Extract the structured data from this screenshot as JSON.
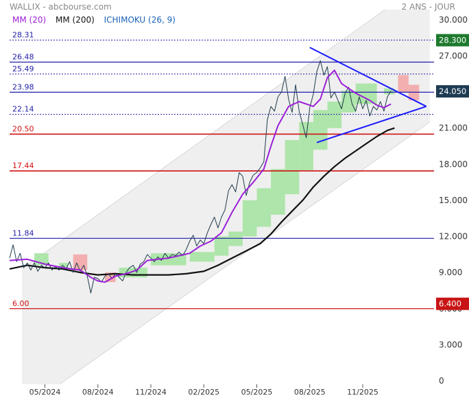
{
  "header": {
    "title": "WALLIX - abcbourse.com",
    "period": "2 ANS - JOUR"
  },
  "legend": [
    {
      "label": "MM (20)",
      "color": "#9b1fd8"
    },
    {
      "label": "MM (200)",
      "color": "#111111"
    },
    {
      "label": "ICHIMOKU (26, 9)",
      "color": "#1a62b8"
    }
  ],
  "chart_data": {
    "type": "line",
    "title": "WALLIX - abcbourse.com",
    "x_ticks": [
      "05/2024",
      "08/2024",
      "11/2024",
      "02/2025",
      "05/2025",
      "08/2025",
      "11/2025"
    ],
    "y_ticks": [
      "0",
      "3.000",
      "6.000",
      "9.000",
      "12.000",
      "15.000",
      "18.000",
      "21.000",
      "24.000",
      "27.000",
      "30.000"
    ],
    "ylim": [
      0,
      30.5
    ],
    "xlim": [
      0,
      24
    ],
    "x_tick_positions": [
      2,
      5,
      8,
      11,
      14,
      17,
      20
    ],
    "horizontal_levels": [
      {
        "label": "28.31",
        "value": 28.31,
        "color": "#1f1fa8",
        "style": "dotted"
      },
      {
        "label": "26.48",
        "value": 26.48,
        "color": "#1f1fa8",
        "style": "solid"
      },
      {
        "label": "25.49",
        "value": 25.49,
        "color": "#1f1fa8",
        "style": "dotted"
      },
      {
        "label": "23.98",
        "value": 23.98,
        "color": "#1f1fa8",
        "style": "solid"
      },
      {
        "label": "22.14",
        "value": 22.14,
        "color": "#1f1fa8",
        "style": "dotted"
      },
      {
        "label": "20.50",
        "value": 20.5,
        "color": "#d01010",
        "style": "solid"
      },
      {
        "label": "17.44",
        "value": 17.44,
        "color": "#d01010",
        "style": "solid"
      },
      {
        "label": "11.84",
        "value": 11.84,
        "color": "#1f1fa8",
        "style": "solid"
      },
      {
        "label": "6.00",
        "value": 6.0,
        "color": "#d01010",
        "style": "solid"
      }
    ],
    "price_badges": [
      {
        "label": "28.300",
        "value": 28.3,
        "color": "#1e7a2e"
      },
      {
        "label": "24.050",
        "value": 24.05,
        "color": "#1d3b52"
      },
      {
        "label": "6.400",
        "value": 6.4,
        "color": "#c81414"
      }
    ],
    "channel": {
      "upper": [
        [
          0.7,
          9.3
        ],
        [
          23.8,
          33.5
        ]
      ],
      "lower": [
        [
          0.7,
          -2.5
        ],
        [
          23.8,
          21.5
        ]
      ]
    },
    "triangle": {
      "top": [
        [
          17.0,
          27.7
        ],
        [
          23.6,
          22.8
        ]
      ],
      "bottom": [
        [
          17.4,
          19.8
        ],
        [
          23.6,
          22.8
        ]
      ]
    },
    "series": [
      {
        "name": "Cours",
        "color": "#1e3a4c",
        "points": [
          [
            0,
            10.2
          ],
          [
            0.2,
            11.3
          ],
          [
            0.4,
            9.9
          ],
          [
            0.6,
            10.6
          ],
          [
            0.8,
            9.4
          ],
          [
            1.0,
            9.8
          ],
          [
            1.2,
            9.2
          ],
          [
            1.4,
            9.8
          ],
          [
            1.6,
            9.1
          ],
          [
            1.8,
            9.6
          ],
          [
            2.0,
            9.4
          ],
          [
            2.2,
            9.8
          ],
          [
            2.4,
            9.2
          ],
          [
            2.6,
            9.5
          ],
          [
            2.8,
            9.2
          ],
          [
            3.0,
            9.6
          ],
          [
            3.2,
            9.3
          ],
          [
            3.4,
            9.9
          ],
          [
            3.6,
            9.0
          ],
          [
            3.8,
            9.8
          ],
          [
            4.0,
            9.1
          ],
          [
            4.2,
            9.6
          ],
          [
            4.4,
            8.7
          ],
          [
            4.6,
            7.3
          ],
          [
            4.8,
            8.6
          ],
          [
            5.0,
            8.5
          ],
          [
            5.2,
            8.2
          ],
          [
            5.4,
            8.7
          ],
          [
            5.6,
            8.9
          ],
          [
            5.8,
            8.5
          ],
          [
            6.0,
            8.9
          ],
          [
            6.2,
            8.6
          ],
          [
            6.4,
            8.3
          ],
          [
            6.6,
            9.0
          ],
          [
            6.8,
            9.4
          ],
          [
            7.0,
            9.6
          ],
          [
            7.2,
            9.0
          ],
          [
            7.4,
            9.7
          ],
          [
            7.6,
            9.9
          ],
          [
            7.8,
            10.5
          ],
          [
            8.0,
            10.2
          ],
          [
            8.2,
            9.9
          ],
          [
            8.4,
            10.3
          ],
          [
            8.6,
            10.0
          ],
          [
            8.8,
            10.6
          ],
          [
            9.0,
            10.2
          ],
          [
            9.2,
            10.5
          ],
          [
            9.4,
            10.4
          ],
          [
            9.6,
            10.7
          ],
          [
            9.8,
            10.4
          ],
          [
            10.0,
            10.9
          ],
          [
            10.2,
            11.6
          ],
          [
            10.4,
            12.1
          ],
          [
            10.6,
            11.2
          ],
          [
            10.8,
            11.7
          ],
          [
            11.0,
            11.4
          ],
          [
            11.2,
            12.3
          ],
          [
            11.4,
            13.0
          ],
          [
            11.6,
            13.6
          ],
          [
            11.8,
            12.7
          ],
          [
            12.0,
            13.6
          ],
          [
            12.2,
            14.2
          ],
          [
            12.4,
            15.8
          ],
          [
            12.6,
            16.3
          ],
          [
            12.8,
            15.7
          ],
          [
            13.0,
            17.3
          ],
          [
            13.2,
            17.0
          ],
          [
            13.4,
            15.4
          ],
          [
            13.6,
            16.5
          ],
          [
            13.8,
            17.1
          ],
          [
            14.0,
            17.3
          ],
          [
            14.2,
            17.7
          ],
          [
            14.4,
            18.2
          ],
          [
            14.6,
            21.7
          ],
          [
            14.8,
            22.8
          ],
          [
            15.0,
            22.4
          ],
          [
            15.2,
            23.6
          ],
          [
            15.4,
            24.0
          ],
          [
            15.6,
            25.3
          ],
          [
            15.8,
            23.4
          ],
          [
            16.0,
            22.3
          ],
          [
            16.2,
            24.6
          ],
          [
            16.4,
            22.4
          ],
          [
            16.6,
            21.3
          ],
          [
            16.8,
            20.2
          ],
          [
            17.0,
            22.7
          ],
          [
            17.2,
            23.8
          ],
          [
            17.4,
            25.7
          ],
          [
            17.6,
            26.6
          ],
          [
            17.8,
            25.4
          ],
          [
            18.0,
            26.1
          ],
          [
            18.2,
            23.5
          ],
          [
            18.4,
            24.0
          ],
          [
            18.6,
            23.3
          ],
          [
            18.8,
            22.6
          ],
          [
            19.0,
            23.9
          ],
          [
            19.2,
            24.4
          ],
          [
            19.4,
            23.0
          ],
          [
            19.6,
            22.4
          ],
          [
            19.8,
            23.6
          ],
          [
            20.0,
            22.6
          ],
          [
            20.2,
            23.3
          ],
          [
            20.4,
            22.0
          ],
          [
            20.6,
            22.8
          ],
          [
            20.8,
            22.5
          ],
          [
            21.0,
            23.2
          ],
          [
            21.2,
            22.4
          ],
          [
            21.4,
            23.6
          ],
          [
            21.6,
            24.1
          ]
        ]
      },
      {
        "name": "MM (20)",
        "color": "#9b1fd8",
        "points": [
          [
            0,
            10.0
          ],
          [
            1.0,
            10.1
          ],
          [
            2.0,
            9.7
          ],
          [
            3.0,
            9.4
          ],
          [
            4.0,
            9.2
          ],
          [
            4.6,
            8.6
          ],
          [
            5.0,
            8.3
          ],
          [
            5.4,
            8.2
          ],
          [
            6.0,
            8.7
          ],
          [
            6.6,
            8.9
          ],
          [
            7.2,
            9.2
          ],
          [
            7.8,
            10.0
          ],
          [
            8.4,
            10.1
          ],
          [
            9.0,
            10.2
          ],
          [
            9.6,
            10.4
          ],
          [
            10.2,
            10.6
          ],
          [
            10.8,
            11.2
          ],
          [
            11.4,
            11.6
          ],
          [
            12.0,
            12.3
          ],
          [
            12.6,
            14.0
          ],
          [
            13.2,
            15.5
          ],
          [
            13.8,
            16.5
          ],
          [
            14.4,
            17.6
          ],
          [
            14.8,
            19.5
          ],
          [
            15.2,
            21.2
          ],
          [
            15.8,
            22.8
          ],
          [
            16.4,
            23.2
          ],
          [
            16.8,
            23.0
          ],
          [
            17.2,
            22.8
          ],
          [
            17.6,
            23.4
          ],
          [
            18.0,
            25.2
          ],
          [
            18.4,
            25.8
          ],
          [
            18.8,
            24.7
          ],
          [
            19.2,
            24.3
          ],
          [
            19.6,
            23.9
          ],
          [
            20.0,
            23.6
          ],
          [
            20.4,
            23.3
          ],
          [
            20.8,
            22.9
          ],
          [
            21.2,
            22.7
          ],
          [
            21.6,
            23.0
          ]
        ]
      },
      {
        "name": "MM (200)",
        "color": "#111111",
        "points": [
          [
            0,
            9.3
          ],
          [
            1.0,
            9.6
          ],
          [
            2.0,
            9.4
          ],
          [
            3.0,
            9.3
          ],
          [
            4.0,
            9.0
          ],
          [
            5.0,
            8.8
          ],
          [
            6.0,
            8.9
          ],
          [
            7.0,
            8.8
          ],
          [
            8.0,
            8.8
          ],
          [
            9.0,
            8.8
          ],
          [
            10.0,
            8.9
          ],
          [
            11.0,
            9.1
          ],
          [
            11.8,
            9.6
          ],
          [
            12.6,
            10.2
          ],
          [
            13.4,
            10.8
          ],
          [
            14.2,
            11.4
          ],
          [
            14.8,
            12.2
          ],
          [
            15.4,
            13.2
          ],
          [
            16.0,
            14.1
          ],
          [
            16.6,
            15.0
          ],
          [
            17.2,
            16.1
          ],
          [
            17.8,
            17.0
          ],
          [
            18.4,
            17.8
          ],
          [
            19.0,
            18.5
          ],
          [
            19.6,
            19.1
          ],
          [
            20.2,
            19.7
          ],
          [
            20.8,
            20.3
          ],
          [
            21.4,
            20.8
          ],
          [
            21.8,
            21.0
          ]
        ]
      }
    ],
    "ichimoku_cloud": [
      {
        "x0": 1.4,
        "x1": 2.2,
        "low": 9.6,
        "high": 10.6,
        "color": "#a6e3a2"
      },
      {
        "x0": 2.8,
        "x1": 3.3,
        "low": 9.3,
        "high": 9.8,
        "color": "#a6e3a2"
      },
      {
        "x0": 3.6,
        "x1": 4.4,
        "low": 9.2,
        "high": 10.5,
        "color": "#f3a7a7"
      },
      {
        "x0": 5.4,
        "x1": 6.0,
        "low": 8.2,
        "high": 9.0,
        "color": "#f3a7a7"
      },
      {
        "x0": 6.2,
        "x1": 7.8,
        "low": 8.6,
        "high": 9.4,
        "color": "#a6e3a2"
      },
      {
        "x0": 8.0,
        "x1": 10.0,
        "low": 9.6,
        "high": 10.6,
        "color": "#a6e3a2"
      },
      {
        "x0": 10.2,
        "x1": 11.6,
        "low": 9.9,
        "high": 10.7,
        "color": "#a6e3a2"
      },
      {
        "x0": 11.6,
        "x1": 12.4,
        "low": 10.4,
        "high": 12.0,
        "color": "#a6e3a2"
      },
      {
        "x0": 12.4,
        "x1": 13.2,
        "low": 11.2,
        "high": 12.4,
        "color": "#a6e3a2"
      },
      {
        "x0": 13.2,
        "x1": 14.0,
        "low": 12.0,
        "high": 15.0,
        "color": "#a6e3a2"
      },
      {
        "x0": 14.0,
        "x1": 14.8,
        "low": 12.8,
        "high": 16.0,
        "color": "#a6e3a2"
      },
      {
        "x0": 14.8,
        "x1": 15.6,
        "low": 13.8,
        "high": 17.6,
        "color": "#a6e3a2"
      },
      {
        "x0": 15.6,
        "x1": 16.4,
        "low": 15.5,
        "high": 20.0,
        "color": "#a6e3a2"
      },
      {
        "x0": 16.4,
        "x1": 17.2,
        "low": 17.5,
        "high": 21.5,
        "color": "#a6e3a2"
      },
      {
        "x0": 17.2,
        "x1": 18.0,
        "low": 19.2,
        "high": 22.5,
        "color": "#a6e3a2"
      },
      {
        "x0": 18.0,
        "x1": 18.8,
        "low": 21.0,
        "high": 23.2,
        "color": "#a6e3a2"
      },
      {
        "x0": 18.8,
        "x1": 19.6,
        "low": 22.3,
        "high": 24.1,
        "color": "#a6e3a2"
      },
      {
        "x0": 19.6,
        "x1": 20.8,
        "low": 23.0,
        "high": 24.7,
        "color": "#a6e3a2"
      },
      {
        "x0": 21.2,
        "x1": 21.8,
        "low": 23.8,
        "high": 24.3,
        "color": "#a6e3a2"
      },
      {
        "x0": 22.0,
        "x1": 22.6,
        "low": 24.0,
        "high": 25.4,
        "color": "#f3a7a7"
      },
      {
        "x0": 22.6,
        "x1": 23.2,
        "low": 23.3,
        "high": 24.6,
        "color": "#f3a7a7"
      }
    ]
  }
}
